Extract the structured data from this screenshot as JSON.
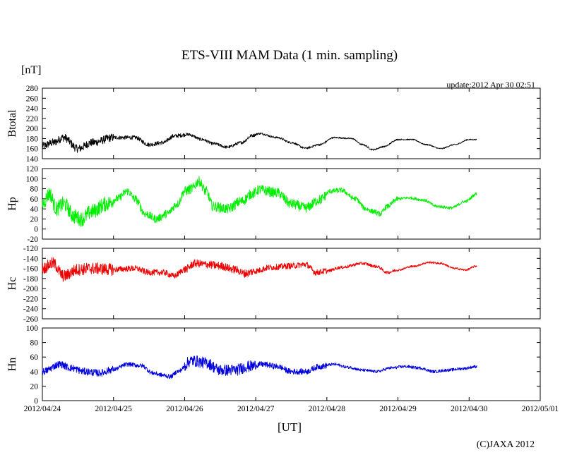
{
  "chart_data": {
    "type": "line",
    "title": "ETS-VIII MAM Data (1 min. sampling)",
    "y_unit": "[nT]",
    "x_title": "[UT]",
    "update": "update:2012 Apr 30 02:51",
    "copyright": "(C)JAXA 2012",
    "x_range_days": [
      0,
      7
    ],
    "x_ticks": [
      "2012/04/24",
      "2012/04/25",
      "2012/04/26",
      "2012/04/27",
      "2012/04/28",
      "2012/04/29",
      "2012/04/30",
      "2012/05/01"
    ],
    "data_end_day": 6.11,
    "panels": [
      {
        "name": "Btotal",
        "color": "#000000",
        "ylim": [
          140,
          280
        ],
        "yticks": [
          "280",
          "260",
          "240",
          "220",
          "200",
          "180",
          "160",
          "140"
        ],
        "points": [
          [
            0,
            165
          ],
          [
            0.15,
            172
          ],
          [
            0.3,
            182
          ],
          [
            0.5,
            160
          ],
          [
            0.7,
            172
          ],
          [
            1.0,
            182
          ],
          [
            1.3,
            182
          ],
          [
            1.5,
            168
          ],
          [
            1.7,
            172
          ],
          [
            1.85,
            185
          ],
          [
            2.05,
            188
          ],
          [
            2.25,
            178
          ],
          [
            2.4,
            170
          ],
          [
            2.6,
            163
          ],
          [
            2.8,
            172
          ],
          [
            2.95,
            186
          ],
          [
            3.05,
            190
          ],
          [
            3.3,
            182
          ],
          [
            3.5,
            172
          ],
          [
            3.7,
            161
          ],
          [
            3.9,
            168
          ],
          [
            4.1,
            182
          ],
          [
            4.35,
            180
          ],
          [
            4.5,
            168
          ],
          [
            4.65,
            158
          ],
          [
            4.8,
            164
          ],
          [
            5.0,
            178
          ],
          [
            5.2,
            178
          ],
          [
            5.4,
            168
          ],
          [
            5.6,
            160
          ],
          [
            5.8,
            168
          ],
          [
            6.0,
            178
          ],
          [
            6.11,
            178
          ]
        ],
        "noise": [
          8,
          4,
          3,
          2,
          1.5,
          1.2,
          1,
          1
        ]
      },
      {
        "name": "Hp",
        "color": "#00ee00",
        "ylim": [
          -20,
          120
        ],
        "yticks": [
          "120",
          "100",
          "80",
          "60",
          "40",
          "20",
          "0",
          "-20"
        ],
        "points": [
          [
            0,
            50
          ],
          [
            0.1,
            70
          ],
          [
            0.2,
            40
          ],
          [
            0.3,
            50
          ],
          [
            0.45,
            25
          ],
          [
            0.55,
            20
          ],
          [
            0.7,
            35
          ],
          [
            0.9,
            50
          ],
          [
            1.05,
            60
          ],
          [
            1.2,
            75
          ],
          [
            1.3,
            60
          ],
          [
            1.45,
            30
          ],
          [
            1.6,
            20
          ],
          [
            1.75,
            30
          ],
          [
            1.9,
            50
          ],
          [
            2.0,
            75
          ],
          [
            2.1,
            80
          ],
          [
            2.2,
            95
          ],
          [
            2.3,
            75
          ],
          [
            2.4,
            45
          ],
          [
            2.6,
            40
          ],
          [
            2.8,
            55
          ],
          [
            2.95,
            70
          ],
          [
            3.05,
            78
          ],
          [
            3.3,
            72
          ],
          [
            3.5,
            50
          ],
          [
            3.7,
            42
          ],
          [
            3.9,
            58
          ],
          [
            4.05,
            75
          ],
          [
            4.2,
            77
          ],
          [
            4.4,
            60
          ],
          [
            4.55,
            40
          ],
          [
            4.65,
            35
          ],
          [
            4.75,
            30
          ],
          [
            4.85,
            45
          ],
          [
            5.0,
            60
          ],
          [
            5.15,
            62
          ],
          [
            5.35,
            58
          ],
          [
            5.55,
            45
          ],
          [
            5.75,
            42
          ],
          [
            5.95,
            55
          ],
          [
            6.11,
            70
          ]
        ],
        "noise": [
          15,
          8,
          10,
          10,
          5,
          3,
          3,
          3
        ]
      },
      {
        "name": "Hc",
        "color": "#ee0000",
        "ylim": [
          -260,
          -120
        ],
        "yticks": [
          "-120",
          "-140",
          "-160",
          "-180",
          "-200",
          "-220",
          "-240",
          "-260"
        ],
        "points": [
          [
            0,
            -160
          ],
          [
            0.15,
            -150
          ],
          [
            0.3,
            -175
          ],
          [
            0.5,
            -162
          ],
          [
            0.7,
            -160
          ],
          [
            1.0,
            -162
          ],
          [
            1.3,
            -160
          ],
          [
            1.5,
            -168
          ],
          [
            1.7,
            -168
          ],
          [
            1.85,
            -175
          ],
          [
            2.0,
            -162
          ],
          [
            2.15,
            -150
          ],
          [
            2.3,
            -152
          ],
          [
            2.5,
            -155
          ],
          [
            2.7,
            -162
          ],
          [
            2.85,
            -170
          ],
          [
            3.0,
            -165
          ],
          [
            3.2,
            -158
          ],
          [
            3.5,
            -155
          ],
          [
            3.7,
            -152
          ],
          [
            3.85,
            -168
          ],
          [
            4.0,
            -165
          ],
          [
            4.2,
            -158
          ],
          [
            4.5,
            -150
          ],
          [
            4.7,
            -156
          ],
          [
            4.85,
            -168
          ],
          [
            5.0,
            -163
          ],
          [
            5.2,
            -156
          ],
          [
            5.45,
            -148
          ],
          [
            5.6,
            -150
          ],
          [
            5.8,
            -160
          ],
          [
            5.95,
            -163
          ],
          [
            6.11,
            -155
          ]
        ],
        "noise": [
          12,
          6,
          8,
          6,
          3,
          2,
          2,
          2
        ]
      },
      {
        "name": "Hn",
        "color": "#0000dd",
        "ylim": [
          0,
          100
        ],
        "yticks": [
          "100",
          "80",
          "60",
          "40",
          "20",
          "0"
        ],
        "points": [
          [
            0,
            40
          ],
          [
            0.25,
            50
          ],
          [
            0.4,
            45
          ],
          [
            0.6,
            40
          ],
          [
            0.8,
            38
          ],
          [
            1.0,
            43
          ],
          [
            1.2,
            50
          ],
          [
            1.4,
            48
          ],
          [
            1.55,
            38
          ],
          [
            1.7,
            35
          ],
          [
            1.8,
            33
          ],
          [
            1.9,
            40
          ],
          [
            2.1,
            55
          ],
          [
            2.3,
            52
          ],
          [
            2.5,
            42
          ],
          [
            2.7,
            42
          ],
          [
            2.9,
            47
          ],
          [
            3.1,
            50
          ],
          [
            3.3,
            47
          ],
          [
            3.5,
            40
          ],
          [
            3.7,
            40
          ],
          [
            3.9,
            47
          ],
          [
            4.1,
            50
          ],
          [
            4.3,
            46
          ],
          [
            4.5,
            42
          ],
          [
            4.7,
            40
          ],
          [
            4.9,
            45
          ],
          [
            5.1,
            47
          ],
          [
            5.3,
            45
          ],
          [
            5.5,
            40
          ],
          [
            5.7,
            42
          ],
          [
            5.9,
            44
          ],
          [
            6.11,
            47
          ]
        ],
        "noise": [
          5,
          3,
          8,
          4,
          2,
          2,
          2,
          2
        ]
      }
    ]
  }
}
